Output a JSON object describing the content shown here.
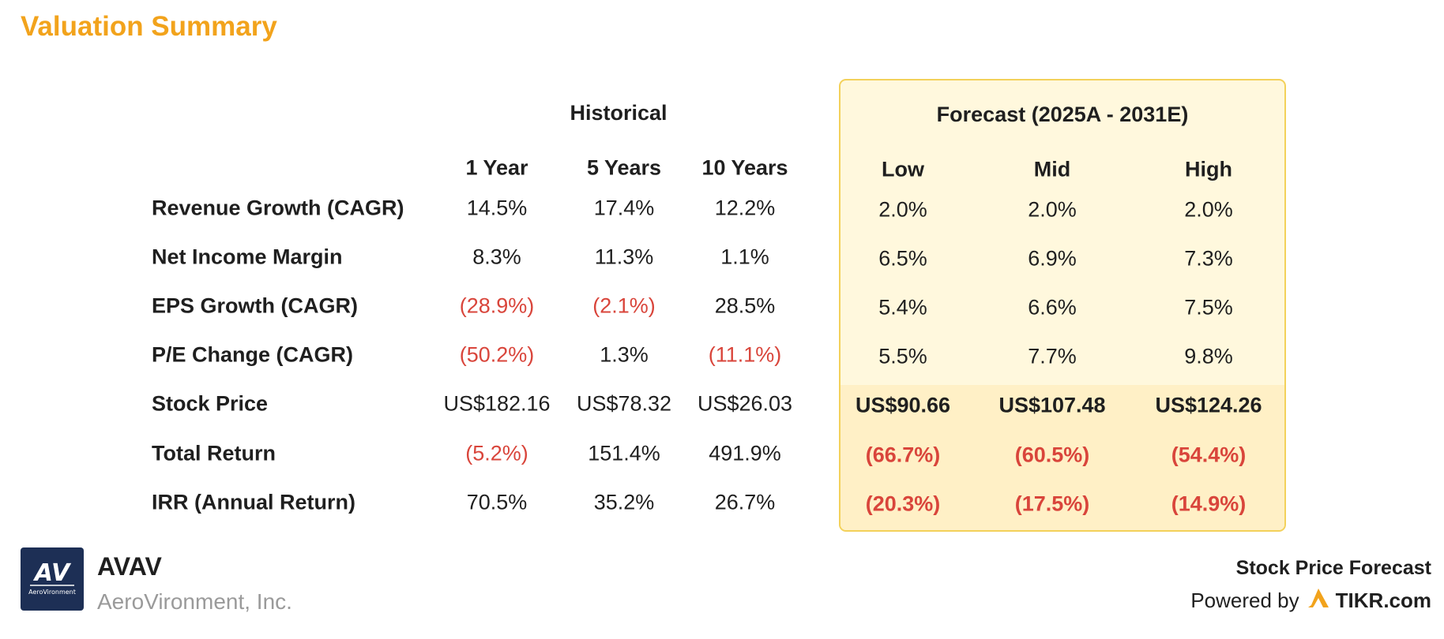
{
  "title": "Valuation Summary",
  "colors": {
    "accent": "#f2a31c",
    "negative": "#d9453b",
    "forecast_bg": "#fff8dd",
    "forecast_border": "#f3d15a",
    "logo_bg": "#1d2f55"
  },
  "historical": {
    "header": "Historical",
    "columns": [
      "1 Year",
      "5 Years",
      "10 Years"
    ]
  },
  "forecast": {
    "header": "Forecast (2025A - 2031E)",
    "columns": [
      "Low",
      "Mid",
      "High"
    ]
  },
  "rows": [
    {
      "label": "Revenue Growth (CAGR)",
      "historical": [
        "14.5%",
        "17.4%",
        "12.2%"
      ],
      "forecast": [
        "2.0%",
        "2.0%",
        "2.0%"
      ]
    },
    {
      "label": "Net Income Margin",
      "historical": [
        "8.3%",
        "11.3%",
        "1.1%"
      ],
      "forecast": [
        "6.5%",
        "6.9%",
        "7.3%"
      ]
    },
    {
      "label": "EPS Growth (CAGR)",
      "historical": [
        "(28.9%)",
        "(2.1%)",
        "28.5%"
      ],
      "forecast": [
        "5.4%",
        "6.6%",
        "7.5%"
      ]
    },
    {
      "label": "P/E Change (CAGR)",
      "historical": [
        "(50.2%)",
        "1.3%",
        "(11.1%)"
      ],
      "forecast": [
        "5.5%",
        "7.7%",
        "9.8%"
      ]
    },
    {
      "label": "Stock Price",
      "historical": [
        "US$182.16",
        "US$78.32",
        "US$26.03"
      ],
      "forecast": [
        "US$90.66",
        "US$107.48",
        "US$124.26"
      ]
    },
    {
      "label": "Total Return",
      "historical": [
        "(5.2%)",
        "151.4%",
        "491.9%"
      ],
      "forecast": [
        "(66.7%)",
        "(60.5%)",
        "(54.4%)"
      ]
    },
    {
      "label": "IRR (Annual Return)",
      "historical": [
        "70.5%",
        "35.2%",
        "26.7%"
      ],
      "forecast": [
        "(20.3%)",
        "(17.5%)",
        "(14.9%)"
      ]
    }
  ],
  "company": {
    "logo_text": "AV",
    "logo_subtext": "AeroVironment",
    "ticker": "AVAV",
    "name": "AeroVironment, Inc."
  },
  "footer": {
    "title": "Stock Price Forecast",
    "powered_by": "Powered by",
    "brand": "TIKR.com",
    "brand_icon": "tikr-logo-icon"
  }
}
